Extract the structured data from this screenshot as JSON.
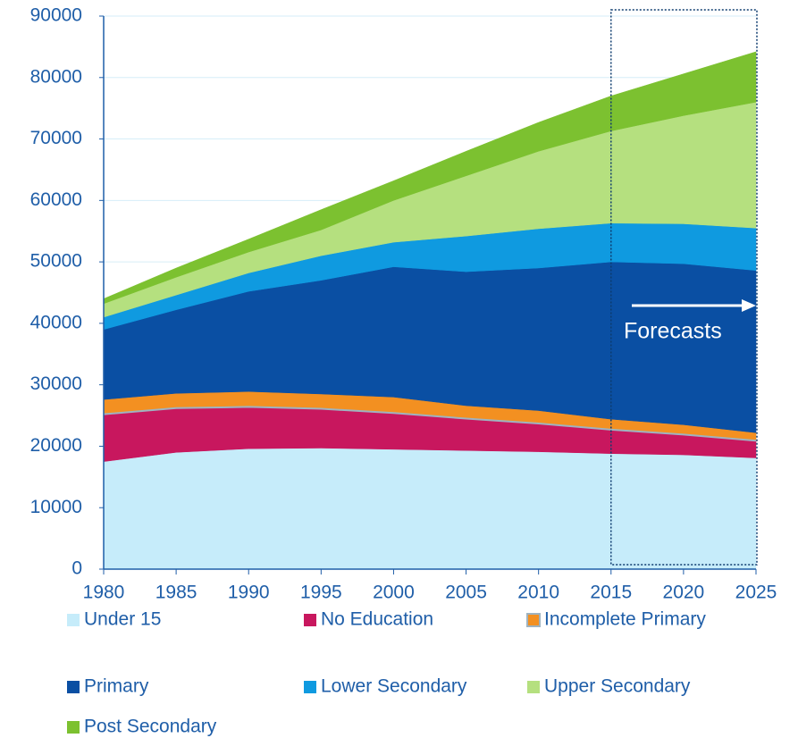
{
  "chart_data": {
    "type": "stacked_area",
    "x": [
      1980,
      1985,
      1990,
      1995,
      2000,
      2005,
      2010,
      2015,
      2020,
      2025
    ],
    "xlim": [
      1980,
      2025
    ],
    "xticks": [
      1980,
      1985,
      1990,
      1995,
      2000,
      2005,
      2010,
      2015,
      2020,
      2025
    ],
    "ylim": [
      0,
      90000
    ],
    "yticks": [
      0,
      10000,
      20000,
      30000,
      40000,
      50000,
      60000,
      70000,
      80000,
      90000
    ],
    "grid": true,
    "annotation": "Forecasts",
    "series": [
      {
        "name": "Under 15",
        "color": "#c6ecfa",
        "values": [
          17500,
          19000,
          19600,
          19700,
          19500,
          19300,
          19100,
          18800,
          18600,
          18100
        ]
      },
      {
        "name": "No Education",
        "color": "#c8175e",
        "values": [
          7700,
          7200,
          6800,
          6400,
          5900,
          5200,
          4600,
          3900,
          3300,
          2800
        ]
      },
      {
        "name": "Incomplete Primary",
        "color": "#f39021",
        "values": [
          2400,
          2400,
          2500,
          2400,
          2600,
          2100,
          2100,
          1700,
          1600,
          1300
        ]
      },
      {
        "name": "Primary",
        "color": "#0a4fa3",
        "values": [
          11400,
          13600,
          16300,
          18500,
          21200,
          21800,
          23200,
          25600,
          26200,
          26400
        ]
      },
      {
        "name": "Lower Secondary",
        "color": "#0f9ae0",
        "values": [
          2000,
          2400,
          3000,
          4000,
          4000,
          5800,
          6400,
          6300,
          6500,
          6900
        ]
      },
      {
        "name": "Upper Secondary",
        "color": "#b5e07f",
        "values": [
          2200,
          2900,
          3400,
          4200,
          6800,
          9800,
          12600,
          15000,
          17600,
          20500
        ]
      },
      {
        "name": "Post Secondary",
        "color": "#7cc130",
        "values": [
          800,
          1500,
          2100,
          3300,
          3200,
          4000,
          4700,
          5700,
          6800,
          8200
        ]
      }
    ]
  }
}
